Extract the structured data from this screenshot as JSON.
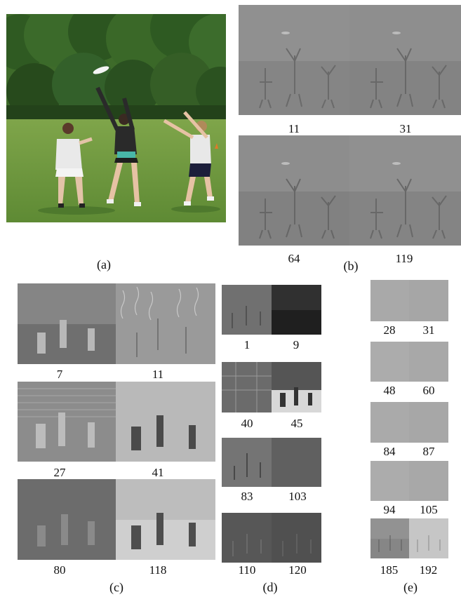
{
  "captions": {
    "a": "(a)",
    "b": "(b)",
    "c": "(c)",
    "d": "(d)",
    "e": "(e)"
  },
  "panel_b": {
    "labels": [
      "11",
      "31",
      "64",
      "119"
    ]
  },
  "panel_c": {
    "labels": [
      "7",
      "11",
      "27",
      "41",
      "80",
      "118"
    ]
  },
  "panel_d": {
    "labels": [
      "1",
      "9",
      "40",
      "45",
      "83",
      "103",
      "110",
      "120"
    ]
  },
  "panel_e": {
    "labels": [
      "28",
      "31",
      "48",
      "60",
      "84",
      "87",
      "94",
      "105",
      "185",
      "192"
    ]
  }
}
